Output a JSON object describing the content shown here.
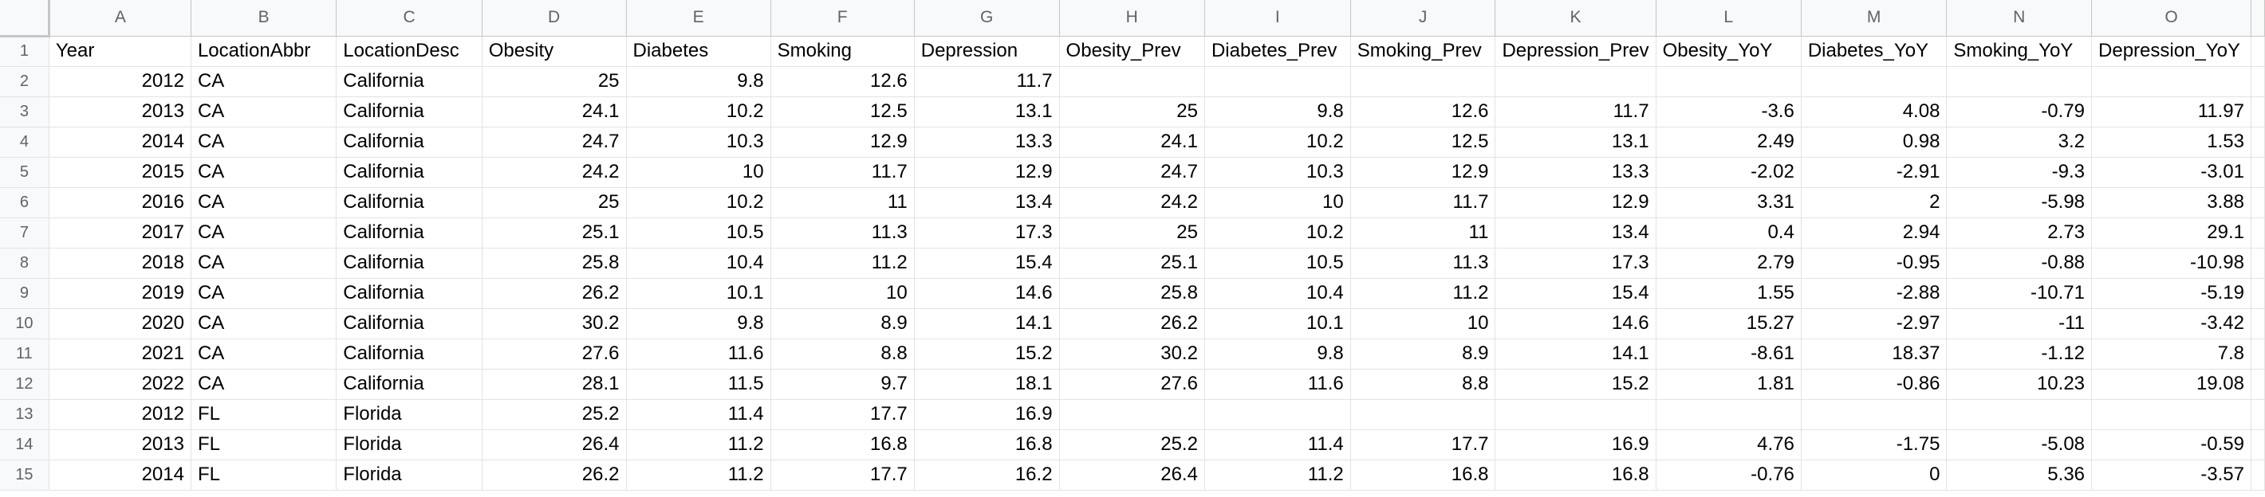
{
  "sheet": {
    "columns": [
      {
        "letter": "A",
        "header": "Year",
        "key": "year",
        "align": "num"
      },
      {
        "letter": "B",
        "header": "LocationAbbr",
        "key": "abbr",
        "align": "txt"
      },
      {
        "letter": "C",
        "header": "LocationDesc",
        "key": "desc",
        "align": "txt"
      },
      {
        "letter": "D",
        "header": "Obesity",
        "key": "obesity",
        "align": "num"
      },
      {
        "letter": "E",
        "header": "Diabetes",
        "key": "diabetes",
        "align": "num"
      },
      {
        "letter": "F",
        "header": "Smoking",
        "key": "smoking",
        "align": "num"
      },
      {
        "letter": "G",
        "header": "Depression",
        "key": "depression",
        "align": "num"
      },
      {
        "letter": "H",
        "header": "Obesity_Prev",
        "key": "obesity_prev",
        "align": "num"
      },
      {
        "letter": "I",
        "header": "Diabetes_Prev",
        "key": "diabetes_prev",
        "align": "num"
      },
      {
        "letter": "J",
        "header": "Smoking_Prev",
        "key": "smoking_prev",
        "align": "num"
      },
      {
        "letter": "K",
        "header": "Depression_Prev",
        "key": "depression_prev",
        "align": "num"
      },
      {
        "letter": "L",
        "header": "Obesity_YoY",
        "key": "obesity_yoy",
        "align": "num"
      },
      {
        "letter": "M",
        "header": "Diabetes_YoY",
        "key": "diabetes_yoy",
        "align": "num"
      },
      {
        "letter": "N",
        "header": "Smoking_YoY",
        "key": "smoking_yoy",
        "align": "num"
      },
      {
        "letter": "O",
        "header": "Depression_YoY",
        "key": "depression_yoy",
        "align": "num"
      }
    ],
    "rows": [
      {
        "num": "2",
        "cells": [
          "2012",
          "CA",
          "California",
          "25",
          "9.8",
          "12.6",
          "11.7",
          "",
          "",
          "",
          "",
          "",
          "",
          "",
          ""
        ]
      },
      {
        "num": "3",
        "cells": [
          "2013",
          "CA",
          "California",
          "24.1",
          "10.2",
          "12.5",
          "13.1",
          "25",
          "9.8",
          "12.6",
          "11.7",
          "-3.6",
          "4.08",
          "-0.79",
          "11.97"
        ]
      },
      {
        "num": "4",
        "cells": [
          "2014",
          "CA",
          "California",
          "24.7",
          "10.3",
          "12.9",
          "13.3",
          "24.1",
          "10.2",
          "12.5",
          "13.1",
          "2.49",
          "0.98",
          "3.2",
          "1.53"
        ]
      },
      {
        "num": "5",
        "cells": [
          "2015",
          "CA",
          "California",
          "24.2",
          "10",
          "11.7",
          "12.9",
          "24.7",
          "10.3",
          "12.9",
          "13.3",
          "-2.02",
          "-2.91",
          "-9.3",
          "-3.01"
        ]
      },
      {
        "num": "6",
        "cells": [
          "2016",
          "CA",
          "California",
          "25",
          "10.2",
          "11",
          "13.4",
          "24.2",
          "10",
          "11.7",
          "12.9",
          "3.31",
          "2",
          "-5.98",
          "3.88"
        ]
      },
      {
        "num": "7",
        "cells": [
          "2017",
          "CA",
          "California",
          "25.1",
          "10.5",
          "11.3",
          "17.3",
          "25",
          "10.2",
          "11",
          "13.4",
          "0.4",
          "2.94",
          "2.73",
          "29.1"
        ]
      },
      {
        "num": "8",
        "cells": [
          "2018",
          "CA",
          "California",
          "25.8",
          "10.4",
          "11.2",
          "15.4",
          "25.1",
          "10.5",
          "11.3",
          "17.3",
          "2.79",
          "-0.95",
          "-0.88",
          "-10.98"
        ]
      },
      {
        "num": "9",
        "cells": [
          "2019",
          "CA",
          "California",
          "26.2",
          "10.1",
          "10",
          "14.6",
          "25.8",
          "10.4",
          "11.2",
          "15.4",
          "1.55",
          "-2.88",
          "-10.71",
          "-5.19"
        ]
      },
      {
        "num": "10",
        "cells": [
          "2020",
          "CA",
          "California",
          "30.2",
          "9.8",
          "8.9",
          "14.1",
          "26.2",
          "10.1",
          "10",
          "14.6",
          "15.27",
          "-2.97",
          "-11",
          "-3.42"
        ]
      },
      {
        "num": "11",
        "cells": [
          "2021",
          "CA",
          "California",
          "27.6",
          "11.6",
          "8.8",
          "15.2",
          "30.2",
          "9.8",
          "8.9",
          "14.1",
          "-8.61",
          "18.37",
          "-1.12",
          "7.8"
        ]
      },
      {
        "num": "12",
        "cells": [
          "2022",
          "CA",
          "California",
          "28.1",
          "11.5",
          "9.7",
          "18.1",
          "27.6",
          "11.6",
          "8.8",
          "15.2",
          "1.81",
          "-0.86",
          "10.23",
          "19.08"
        ]
      },
      {
        "num": "13",
        "cells": [
          "2012",
          "FL",
          "Florida",
          "25.2",
          "11.4",
          "17.7",
          "16.9",
          "",
          "",
          "",
          "",
          "",
          "",
          "",
          ""
        ]
      },
      {
        "num": "14",
        "cells": [
          "2013",
          "FL",
          "Florida",
          "26.4",
          "11.2",
          "16.8",
          "16.8",
          "25.2",
          "11.4",
          "17.7",
          "16.9",
          "4.76",
          "-1.75",
          "-5.08",
          "-0.59"
        ]
      },
      {
        "num": "15",
        "cells": [
          "2014",
          "FL",
          "Florida",
          "26.2",
          "11.2",
          "17.7",
          "16.2",
          "26.4",
          "11.2",
          "16.8",
          "16.8",
          "-0.76",
          "0",
          "5.36",
          "-3.57"
        ]
      }
    ]
  }
}
